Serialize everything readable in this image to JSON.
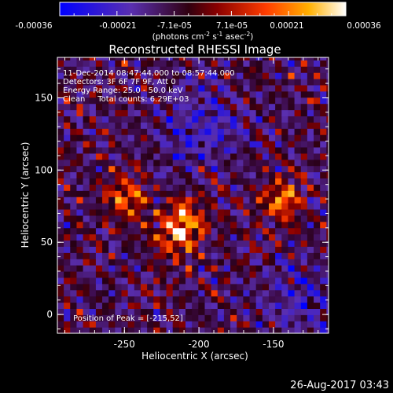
{
  "colorbar": {
    "ticks": [
      "-0.00036",
      "-0.00021",
      "-7.1e-05",
      "7.1e-05",
      "0.00021",
      "0.00036"
    ],
    "units_label": "(photons cm",
    "units_exp1": "-2",
    "units_s": " s",
    "units_exp2": "-1",
    "units_asec": " asec",
    "units_exp3": "-2",
    "units_close": ")"
  },
  "chart_data": {
    "type": "heatmap",
    "title": "Reconstructed RHESSI Image",
    "xlabel": "Heliocentric X (arcsec)",
    "ylabel": "Heliocentric Y (arcsec)",
    "xlim": [
      -295,
      -113
    ],
    "ylim": [
      -13,
      178
    ],
    "xticks": [
      {
        "value": -250,
        "label": "-250"
      },
      {
        "value": -200,
        "label": "-200"
      },
      {
        "value": -150,
        "label": "-150"
      }
    ],
    "yticks": [
      {
        "value": 0,
        "label": "0"
      },
      {
        "value": 50,
        "label": "50"
      },
      {
        "value": 100,
        "label": "100"
      },
      {
        "value": 150,
        "label": "150"
      }
    ],
    "value_range": [
      -0.00036,
      0.00036
    ],
    "peak": [
      -215,
      52
    ],
    "hot_spots": [
      {
        "x": -215,
        "y": 52
      },
      {
        "x": -210,
        "y": 68
      },
      {
        "x": -145,
        "y": 80
      },
      {
        "x": -250,
        "y": 80
      }
    ],
    "info_lines": [
      "11-Dec-2014 08:47:44.000 to 08:57:44.000",
      "Detectors: 3F 6F 7F 9F, Att 0",
      "Energy Range: 25.0 - 50.0 keV",
      "Clean     Total counts: 6.29E+03"
    ],
    "peak_label": "Position of Peak = [-215,52]"
  },
  "footer": {
    "timestamp": "26-Aug-2017 03:43"
  }
}
